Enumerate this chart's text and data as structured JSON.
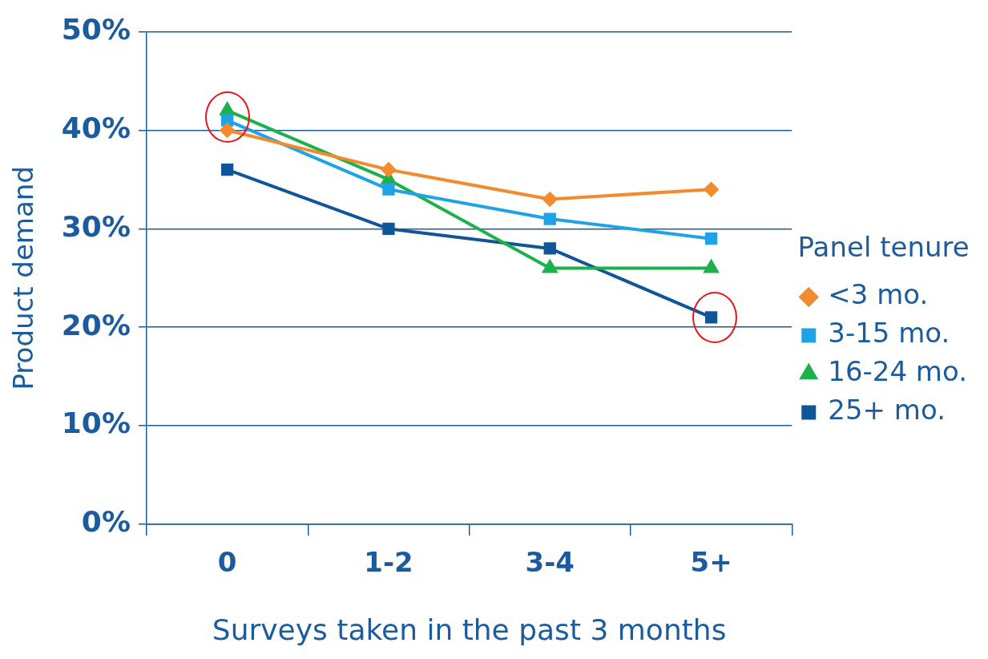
{
  "chart_data": {
    "type": "line",
    "xlabel": "Surveys taken in the past 3 months",
    "ylabel": "Product demand",
    "legend_title": "Panel tenure",
    "categories": [
      "0",
      "1-2",
      "3-4",
      "5+"
    ],
    "series": [
      {
        "name": "<3 mo.",
        "color": "#f28a30",
        "marker": "diamond",
        "values": [
          40,
          36,
          33,
          34
        ]
      },
      {
        "name": "3-15 mo.",
        "color": "#1fa3e6",
        "marker": "square",
        "values": [
          41,
          34,
          31,
          29
        ]
      },
      {
        "name": "16-24 mo.",
        "color": "#1db04b",
        "marker": "triangle",
        "values": [
          42,
          35,
          26,
          26
        ]
      },
      {
        "name": "25+ mo.",
        "color": "#0f5597",
        "marker": "square",
        "values": [
          36,
          30,
          28,
          21
        ]
      }
    ],
    "ylim": [
      0,
      50
    ],
    "yticks": [
      {
        "value": 0,
        "label": "0%"
      },
      {
        "value": 10,
        "label": "10%"
      },
      {
        "value": 20,
        "label": "20%"
      },
      {
        "value": 30,
        "label": "30%"
      },
      {
        "value": 40,
        "label": "40%"
      },
      {
        "value": 50,
        "label": "50%"
      }
    ],
    "grid": "y",
    "legend": "right",
    "line_style": "solid"
  }
}
